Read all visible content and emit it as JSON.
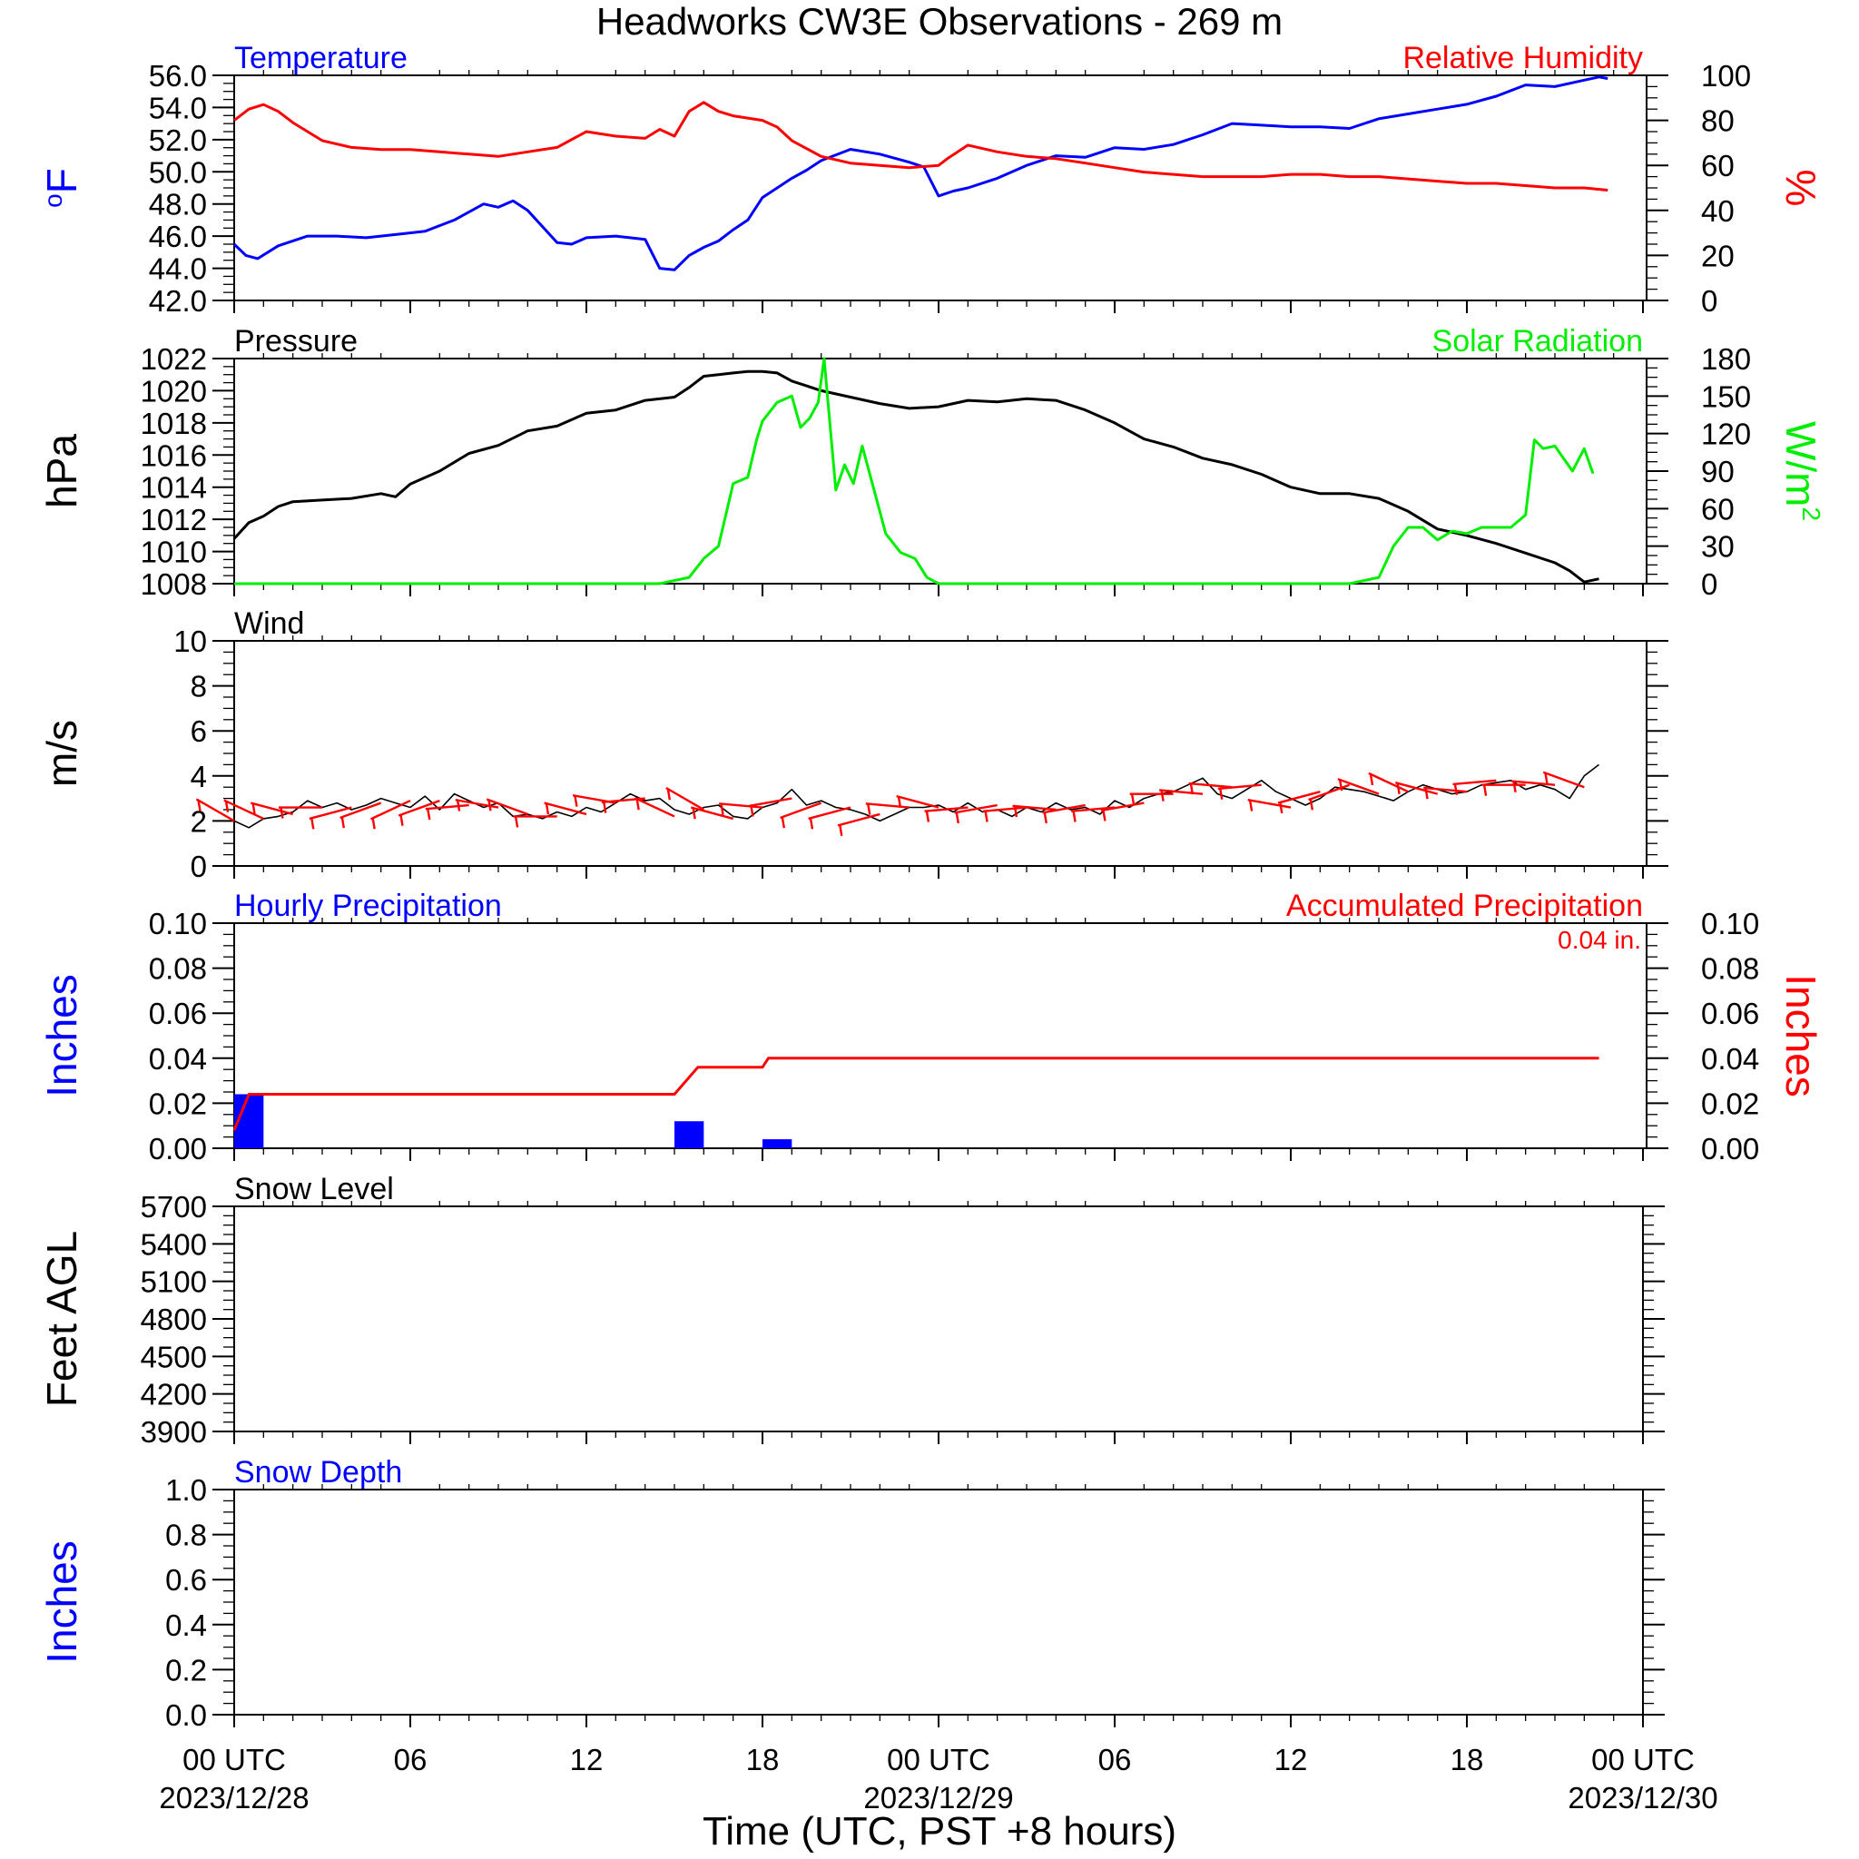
{
  "title": "Headworks CW3E Observations - 269 m",
  "x_axis": {
    "label": "Time (UTC, PST +8 hours)",
    "range_hours": [
      0,
      48
    ],
    "ticks": [
      {
        "h": 0,
        "line1": "00 UTC",
        "line2": "2023/12/28"
      },
      {
        "h": 6,
        "line1": "06",
        "line2": ""
      },
      {
        "h": 12,
        "line1": "12",
        "line2": ""
      },
      {
        "h": 18,
        "line1": "18",
        "line2": ""
      },
      {
        "h": 24,
        "line1": "00 UTC",
        "line2": "2023/12/29"
      },
      {
        "h": 30,
        "line1": "06",
        "line2": ""
      },
      {
        "h": 36,
        "line1": "12",
        "line2": ""
      },
      {
        "h": 42,
        "line1": "18",
        "line2": ""
      },
      {
        "h": 48,
        "line1": "00 UTC",
        "line2": "2023/12/30"
      }
    ]
  },
  "colors": {
    "blue": "#0000ff",
    "red": "#ff0000",
    "green": "#00ee00",
    "black": "#000000"
  },
  "chart_data": [
    {
      "type": "line",
      "panel": "temperature_rh",
      "left_label": "Temperature",
      "right_label": "Relative Humidity",
      "left_unit": "oF",
      "right_unit": "%",
      "left_ylim": [
        42,
        56
      ],
      "left_ticks": [
        "42.0",
        "44.0",
        "46.0",
        "48.0",
        "50.0",
        "52.0",
        "54.0",
        "56.0"
      ],
      "right_ylim": [
        0,
        100
      ],
      "right_ticks": [
        "0",
        "20",
        "40",
        "60",
        "80",
        "100"
      ],
      "series": [
        {
          "axis": "left",
          "color": "blue",
          "x": [
            0,
            0.4,
            0.8,
            1.5,
            2.5,
            3.5,
            4.5,
            5.5,
            6.5,
            7.5,
            8.5,
            9.0,
            9.5,
            10.0,
            11.0,
            11.5,
            12.0,
            13.0,
            14.0,
            14.5,
            15.0,
            15.5,
            16.0,
            16.5,
            17.0,
            17.5,
            18.0,
            18.5,
            19.0,
            19.5,
            20.0,
            21.0,
            22.0,
            23.0,
            23.5,
            24.0,
            24.5,
            25.0,
            26.0,
            27.0,
            28.0,
            29.0,
            30.0,
            31.0,
            32.0,
            33.0,
            34.0,
            35.0,
            36.0,
            37.0,
            38.0,
            39.0,
            40.0,
            41.0,
            42.0,
            43.0,
            44.0,
            45.0,
            46.0,
            46.5,
            46.8
          ],
          "y": [
            45.5,
            44.8,
            44.6,
            45.4,
            46.0,
            46.0,
            45.9,
            46.1,
            46.3,
            47.0,
            48.0,
            47.8,
            48.2,
            47.6,
            45.6,
            45.5,
            45.9,
            46.0,
            45.8,
            44.0,
            43.9,
            44.8,
            45.3,
            45.7,
            46.4,
            47.0,
            48.4,
            49.0,
            49.6,
            50.1,
            50.7,
            51.4,
            51.1,
            50.6,
            50.3,
            48.5,
            48.8,
            49.0,
            49.6,
            50.4,
            51.0,
            50.9,
            51.5,
            51.4,
            51.7,
            52.3,
            53.0,
            52.9,
            52.8,
            52.8,
            52.7,
            53.3,
            53.6,
            53.9,
            54.2,
            54.7,
            55.4,
            55.3,
            55.7,
            55.9,
            55.8
          ]
        },
        {
          "axis": "right",
          "color": "red",
          "x": [
            0,
            0.5,
            1.0,
            1.5,
            2.0,
            3.0,
            4.0,
            5.0,
            6.0,
            7.0,
            8.0,
            9.0,
            10.0,
            11.0,
            12.0,
            13.0,
            14.0,
            14.5,
            15.0,
            15.5,
            16.0,
            16.5,
            17.0,
            17.5,
            18.0,
            18.5,
            19.0,
            20.0,
            21.0,
            22.0,
            23.0,
            24.0,
            24.3,
            25.0,
            26.0,
            27.0,
            28.0,
            29.0,
            30.0,
            31.0,
            32.0,
            33.0,
            34.0,
            35.0,
            36.0,
            37.0,
            38.0,
            39.0,
            40.0,
            41.0,
            42.0,
            43.0,
            44.0,
            45.0,
            46.0,
            46.8
          ],
          "y": [
            80,
            85,
            87,
            84,
            79,
            71,
            68,
            67,
            67,
            66,
            65,
            64,
            66,
            68,
            75,
            73,
            72,
            76,
            73,
            84,
            88,
            84,
            82,
            81,
            80,
            77,
            71,
            64,
            61,
            60,
            59,
            60,
            63,
            69,
            66,
            64,
            63,
            61,
            59,
            57,
            56,
            55,
            55,
            55,
            56,
            56,
            55,
            55,
            54,
            53,
            52,
            52,
            51,
            50,
            50,
            49
          ]
        }
      ]
    },
    {
      "type": "line",
      "panel": "pressure_solar",
      "left_label": "Pressure",
      "right_label": "Solar Radiation",
      "left_unit": "hPa",
      "right_unit": "W/m",
      "right_unit_sup": "2",
      "left_ylim": [
        1008,
        1022
      ],
      "left_ticks": [
        "1008",
        "1010",
        "1012",
        "1014",
        "1016",
        "1018",
        "1020",
        "1022"
      ],
      "right_ylim": [
        0,
        180
      ],
      "right_ticks": [
        "0",
        "30",
        "60",
        "90",
        "120",
        "150",
        "180"
      ],
      "series": [
        {
          "axis": "left",
          "color": "black",
          "x": [
            0,
            0.5,
            1.0,
            1.5,
            2.0,
            3.0,
            4.0,
            5.0,
            5.5,
            6.0,
            7.0,
            8.0,
            9.0,
            10.0,
            11.0,
            12.0,
            13.0,
            14.0,
            15.0,
            15.5,
            16.0,
            16.5,
            17.0,
            17.5,
            18.0,
            18.5,
            19.0,
            19.5,
            20.0,
            21.0,
            22.0,
            23.0,
            24.0,
            25.0,
            26.0,
            27.0,
            28.0,
            29.0,
            30.0,
            31.0,
            32.0,
            33.0,
            34.0,
            35.0,
            36.0,
            37.0,
            38.0,
            39.0,
            40.0,
            41.0,
            42.0,
            43.0,
            44.0,
            45.0,
            45.5,
            46.0,
            46.5
          ],
          "y": [
            1010.8,
            1011.8,
            1012.2,
            1012.8,
            1013.1,
            1013.2,
            1013.3,
            1013.6,
            1013.4,
            1014.2,
            1015.0,
            1016.1,
            1016.6,
            1017.5,
            1017.8,
            1018.6,
            1018.8,
            1019.4,
            1019.6,
            1020.2,
            1020.9,
            1021.0,
            1021.1,
            1021.2,
            1021.2,
            1021.1,
            1020.6,
            1020.3,
            1020.0,
            1019.6,
            1019.2,
            1018.9,
            1019.0,
            1019.4,
            1019.3,
            1019.5,
            1019.4,
            1018.8,
            1018.0,
            1017.0,
            1016.5,
            1015.8,
            1015.4,
            1014.8,
            1014.0,
            1013.6,
            1013.6,
            1013.3,
            1012.5,
            1011.4,
            1011.0,
            1010.5,
            1009.9,
            1009.3,
            1008.8,
            1008.1,
            1008.3
          ]
        },
        {
          "axis": "right",
          "color": "green",
          "x": [
            0,
            14.5,
            15.5,
            16.0,
            16.5,
            17.0,
            17.5,
            17.8,
            18.0,
            18.5,
            19.0,
            19.3,
            19.6,
            19.9,
            20.1,
            20.5,
            20.8,
            21.1,
            21.4,
            21.8,
            22.2,
            22.7,
            23.2,
            23.6,
            24.0,
            38.0,
            39.0,
            39.5,
            40.0,
            40.5,
            41.0,
            41.5,
            42.0,
            42.5,
            43.0,
            43.5,
            44.0,
            44.3,
            44.6,
            45.0,
            45.3,
            45.6,
            46.0,
            46.3
          ],
          "y": [
            0,
            0,
            5,
            20,
            30,
            80,
            85,
            115,
            130,
            145,
            150,
            125,
            132,
            145,
            180,
            75,
            95,
            80,
            110,
            75,
            40,
            25,
            20,
            5,
            0,
            0,
            5,
            30,
            45,
            45,
            35,
            42,
            40,
            45,
            45,
            45,
            55,
            115,
            108,
            110,
            100,
            90,
            108,
            88
          ]
        }
      ]
    },
    {
      "type": "line",
      "panel": "wind",
      "left_label": "Wind",
      "left_unit": "m/s",
      "left_ylim": [
        0,
        10
      ],
      "left_ticks": [
        "0",
        "2",
        "4",
        "6",
        "8",
        "10"
      ],
      "series": [
        {
          "axis": "left",
          "color": "black",
          "x": [
            0,
            0.5,
            1.0,
            1.5,
            2.0,
            2.5,
            3.0,
            3.5,
            4.0,
            4.5,
            5.0,
            5.5,
            6.0,
            6.5,
            7.0,
            7.5,
            8.0,
            8.5,
            9.0,
            9.5,
            10.0,
            10.5,
            11.0,
            11.5,
            12.0,
            12.5,
            13.0,
            13.5,
            14.0,
            14.5,
            15.0,
            15.5,
            16.0,
            16.5,
            17.0,
            17.5,
            18.0,
            18.5,
            19.0,
            19.5,
            20.0,
            20.5,
            21.0,
            21.5,
            22.0,
            22.5,
            23.0,
            23.5,
            24.0,
            24.5,
            25.0,
            25.5,
            26.0,
            26.5,
            27.0,
            27.5,
            28.0,
            28.5,
            29.0,
            29.5,
            30.0,
            30.5,
            31.0,
            31.5,
            32.0,
            32.5,
            33.0,
            33.5,
            34.0,
            34.5,
            35.0,
            35.5,
            36.0,
            36.5,
            37.0,
            37.5,
            38.0,
            38.5,
            39.0,
            39.5,
            40.0,
            40.5,
            41.0,
            41.5,
            42.0,
            42.5,
            43.0,
            43.5,
            44.0,
            44.5,
            45.0,
            45.5,
            46.0,
            46.5
          ],
          "y": [
            2.0,
            1.7,
            2.1,
            2.2,
            2.4,
            2.9,
            2.6,
            2.8,
            2.5,
            2.7,
            3.0,
            2.8,
            2.6,
            3.1,
            2.5,
            3.2,
            2.9,
            2.6,
            2.8,
            2.2,
            2.3,
            2.1,
            2.4,
            2.2,
            2.6,
            2.4,
            2.8,
            3.2,
            2.9,
            3.0,
            2.5,
            2.3,
            2.6,
            2.7,
            2.2,
            2.1,
            2.6,
            2.8,
            3.4,
            2.7,
            2.9,
            2.6,
            2.5,
            2.3,
            2.0,
            2.3,
            2.6,
            2.6,
            2.7,
            2.4,
            2.8,
            2.4,
            2.5,
            2.2,
            2.6,
            2.4,
            2.8,
            2.5,
            2.6,
            2.3,
            2.9,
            2.6,
            3.0,
            3.2,
            3.3,
            3.6,
            3.9,
            3.2,
            3.0,
            3.4,
            3.8,
            3.3,
            3.0,
            2.7,
            3.0,
            3.5,
            3.4,
            3.3,
            3.1,
            2.9,
            3.3,
            3.6,
            3.4,
            3.2,
            3.3,
            3.6,
            3.7,
            3.8,
            3.4,
            3.6,
            3.4,
            3.0,
            4.0,
            4.5
          ]
        }
      ],
      "barbs": {
        "color": "red",
        "x": [
          0,
          1,
          2,
          3,
          4,
          5,
          6,
          7,
          8,
          9,
          10,
          11,
          12,
          13,
          14,
          15,
          16,
          17,
          18,
          19,
          20,
          21,
          22,
          23,
          24,
          25,
          26,
          27,
          28,
          29,
          30,
          31,
          32,
          33,
          34,
          35,
          36,
          37,
          38,
          39,
          40,
          41,
          42,
          43,
          44,
          45,
          46
        ],
        "speed": [
          2.0,
          2.1,
          2.3,
          2.6,
          2.6,
          2.8,
          2.9,
          2.9,
          2.7,
          2.6,
          2.3,
          2.2,
          2.3,
          2.8,
          3.0,
          2.2,
          2.5,
          2.1,
          2.6,
          3.0,
          2.8,
          2.6,
          2.3,
          2.6,
          2.6,
          2.6,
          2.7,
          2.6,
          2.5,
          2.7,
          2.6,
          2.8,
          3.2,
          3.2,
          3.5,
          3.6,
          2.6,
          3.3,
          3.6,
          3.2,
          3.3,
          3.2,
          3.3,
          3.8,
          3.6,
          3.6,
          3.5
        ],
        "dir_deg": [
          300,
          295,
          285,
          270,
          255,
          250,
          245,
          250,
          265,
          280,
          290,
          270,
          285,
          280,
          265,
          295,
          300,
          285,
          275,
          260,
          250,
          255,
          255,
          275,
          285,
          265,
          260,
          265,
          275,
          260,
          265,
          260,
          270,
          275,
          275,
          265,
          280,
          255,
          250,
          290,
          295,
          285,
          275,
          265,
          270,
          275,
          290
        ]
      }
    },
    {
      "type": "bar",
      "panel": "precipitation",
      "left_label": "Hourly Precipitation",
      "right_label": "Accumulated Precipitation",
      "total_text": "0.04 in.",
      "left_unit": "Inches",
      "right_unit": "Inches",
      "left_ylim": [
        0,
        0.1
      ],
      "left_ticks": [
        "0.00",
        "0.02",
        "0.04",
        "0.06",
        "0.08",
        "0.10"
      ],
      "right_ylim": [
        0,
        0.1
      ],
      "right_ticks": [
        "0.00",
        "0.02",
        "0.04",
        "0.06",
        "0.08",
        "0.10"
      ],
      "bars": {
        "color": "blue",
        "x": [
          0,
          15,
          18
        ],
        "values": [
          0.024,
          0.012,
          0.004
        ]
      },
      "series": [
        {
          "axis": "right",
          "color": "red",
          "x": [
            0,
            0.5,
            15.0,
            15.8,
            18.0,
            18.2,
            46.5
          ],
          "y": [
            0.008,
            0.024,
            0.024,
            0.036,
            0.036,
            0.04,
            0.04
          ]
        }
      ]
    },
    {
      "type": "line",
      "panel": "snow_level",
      "left_label": "Snow Level",
      "left_unit": "Feet AGL",
      "left_ylim": [
        3900,
        5700
      ],
      "left_ticks": [
        "3900",
        "4200",
        "4500",
        "4800",
        "5100",
        "5400",
        "5700"
      ],
      "series": []
    },
    {
      "type": "line",
      "panel": "snow_depth",
      "left_label": "Snow Depth",
      "left_unit": "Inches",
      "left_ylim": [
        0,
        1
      ],
      "left_ticks": [
        "0.0",
        "0.2",
        "0.4",
        "0.6",
        "0.8",
        "1.0"
      ],
      "series": []
    }
  ]
}
